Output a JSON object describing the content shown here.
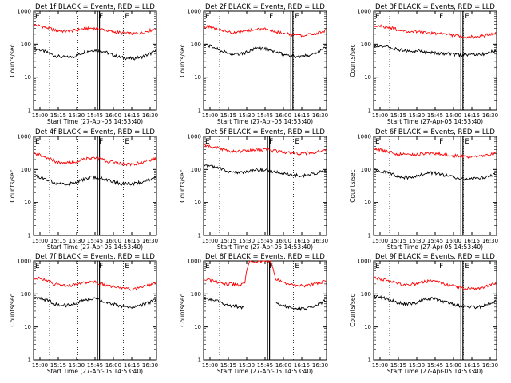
{
  "figure": {
    "xlabel": "Start Time (27-Apr-05 14:53:40)",
    "ylabel": "Counts/sec",
    "x_ticks": [
      "15:00",
      "15:15",
      "15:30",
      "15:45",
      "16:00",
      "16:15",
      "16:30"
    ],
    "y_ticks": [
      "1",
      "10",
      "100",
      "1000"
    ],
    "colors": {
      "events": "#000000",
      "lld": "#ff0000",
      "frame": "#000000"
    }
  },
  "chart_data": [
    {
      "type": "line",
      "title": "Det 1f BLACK = Events, RED = LLD",
      "ylim": [
        1,
        1000
      ],
      "yscale": "log",
      "markers": [
        "E",
        "F",
        "E"
      ],
      "series": [
        {
          "name": "Events",
          "color": "#000000",
          "values": [
            72,
            68,
            60,
            52,
            45,
            42,
            40,
            40,
            43,
            50,
            58,
            63,
            66,
            64,
            58,
            50,
            44,
            40,
            38,
            37,
            38,
            40,
            45,
            52,
            62
          ]
        },
        {
          "name": "LLD",
          "color": "#ff0000",
          "values": [
            380,
            360,
            330,
            300,
            270,
            255,
            248,
            250,
            262,
            280,
            298,
            305,
            300,
            290,
            270,
            250,
            235,
            225,
            215,
            210,
            212,
            222,
            240,
            265,
            300
          ]
        }
      ]
    },
    {
      "type": "line",
      "title": "Det 2f BLACK = Events, RED = LLD",
      "ylim": [
        1,
        1000
      ],
      "yscale": "log",
      "markers": [
        "E",
        "F",
        "E"
      ],
      "series": [
        {
          "name": "Events",
          "color": "#000000",
          "values": [
            92,
            88,
            78,
            68,
            58,
            52,
            49,
            50,
            54,
            62,
            72,
            76,
            74,
            66,
            58,
            52,
            48,
            45,
            43,
            42,
            44,
            48,
            55,
            65,
            80
          ]
        },
        {
          "name": "LLD",
          "color": "#ff0000",
          "values": [
            350,
            340,
            310,
            280,
            250,
            235,
            230,
            232,
            242,
            260,
            280,
            288,
            282,
            262,
            240,
            222,
            210,
            200,
            192,
            188,
            190,
            198,
            212,
            232,
            262
          ]
        }
      ]
    },
    {
      "type": "line",
      "title": "Det 3f BLACK = Events, RED = LLD",
      "ylim": [
        1,
        1000
      ],
      "yscale": "log",
      "markers": [
        "E",
        "F",
        "E"
      ],
      "series": [
        {
          "name": "Events",
          "color": "#000000",
          "values": [
            88,
            86,
            82,
            78,
            72,
            68,
            65,
            63,
            62,
            60,
            58,
            56,
            55,
            53,
            52,
            50,
            48,
            47,
            46,
            46,
            47,
            49,
            52,
            57,
            63
          ]
        },
        {
          "name": "LLD",
          "color": "#ff0000",
          "values": [
            370,
            360,
            340,
            315,
            292,
            272,
            258,
            248,
            242,
            236,
            230,
            222,
            214,
            205,
            196,
            188,
            180,
            174,
            170,
            168,
            170,
            176,
            186,
            200,
            220
          ]
        }
      ]
    },
    {
      "type": "line",
      "title": "Det 4f BLACK = Events, RED = LLD",
      "ylim": [
        1,
        1000
      ],
      "yscale": "log",
      "markers": [
        "E",
        "F",
        "E"
      ],
      "series": [
        {
          "name": "Events",
          "color": "#000000",
          "values": [
            65,
            60,
            52,
            45,
            40,
            37,
            36,
            37,
            40,
            45,
            52,
            57,
            59,
            56,
            50,
            45,
            41,
            38,
            37,
            37,
            38,
            41,
            45,
            50,
            56
          ]
        },
        {
          "name": "LLD",
          "color": "#ff0000",
          "values": [
            300,
            280,
            245,
            210,
            180,
            162,
            155,
            158,
            170,
            190,
            212,
            225,
            220,
            205,
            185,
            170,
            160,
            152,
            148,
            148,
            152,
            162,
            178,
            198,
            222
          ]
        }
      ]
    },
    {
      "type": "line",
      "title": "Det 5f BLACK = Events, RED = LLD",
      "ylim": [
        1,
        1000
      ],
      "yscale": "log",
      "markers": [
        "E",
        "F",
        "E"
      ],
      "series": [
        {
          "name": "Events",
          "color": "#000000",
          "values": [
            130,
            128,
            118,
            106,
            94,
            86,
            80,
            79,
            82,
            88,
            95,
            98,
            96,
            90,
            84,
            78,
            74,
            70,
            67,
            66,
            67,
            70,
            76,
            84,
            96
          ]
        },
        {
          "name": "LLD",
          "color": "#ff0000",
          "values": [
            520,
            505,
            470,
            430,
            395,
            372,
            360,
            358,
            365,
            380,
            395,
            400,
            395,
            380,
            362,
            345,
            330,
            318,
            310,
            306,
            308,
            316,
            332,
            356,
            390
          ]
        }
      ]
    },
    {
      "type": "line",
      "title": "Det 6f BLACK = Events, RED = LLD",
      "ylim": [
        1,
        1000
      ],
      "yscale": "log",
      "markers": [
        "E",
        "F",
        "E"
      ],
      "series": [
        {
          "name": "Events",
          "color": "#000000",
          "values": [
            95,
            92,
            85,
            76,
            68,
            62,
            58,
            57,
            60,
            66,
            74,
            79,
            78,
            72,
            66,
            62,
            58,
            55,
            53,
            52,
            53,
            55,
            59,
            65,
            73
          ]
        },
        {
          "name": "LLD",
          "color": "#ff0000",
          "values": [
            400,
            392,
            370,
            340,
            310,
            292,
            282,
            280,
            285,
            296,
            310,
            316,
            310,
            298,
            284,
            270,
            260,
            252,
            246,
            242,
            244,
            250,
            262,
            280,
            305
          ]
        }
      ]
    },
    {
      "type": "line",
      "title": "Det 7f BLACK = Events, RED = LLD",
      "ylim": [
        1,
        1000
      ],
      "yscale": "log",
      "markers": [
        "E",
        "F",
        "E"
      ],
      "series": [
        {
          "name": "Events",
          "color": "#000000",
          "values": [
            80,
            76,
            68,
            59,
            51,
            47,
            45,
            46,
            50,
            57,
            65,
            70,
            70,
            64,
            57,
            51,
            47,
            44,
            42,
            41,
            42,
            45,
            50,
            57,
            66
          ]
        },
        {
          "name": "LLD",
          "color": "#ff0000",
          "values": [
            300,
            290,
            262,
            230,
            200,
            182,
            175,
            176,
            186,
            205,
            225,
            235,
            230,
            210,
            188,
            170,
            158,
            150,
            145,
            143,
            146,
            155,
            170,
            192,
            222
          ]
        }
      ]
    },
    {
      "type": "line",
      "title": "Det 8f BLACK = Events, RED = LLD",
      "ylim": [
        1,
        1000
      ],
      "yscale": "log",
      "markers": [
        "E",
        "F",
        "E"
      ],
      "series": [
        {
          "name": "Events",
          "color": "#000000",
          "values": [
            72,
            70,
            64,
            56,
            49,
            45,
            42,
            40,
            40,
            null,
            null,
            null,
            null,
            null,
            60,
            50,
            42,
            38,
            36,
            35,
            36,
            39,
            44,
            52,
            64
          ]
        },
        {
          "name": "LLD",
          "color": "#ff0000",
          "values": [
            270,
            262,
            245,
            225,
            208,
            198,
            192,
            190,
            200,
            1000,
            1000,
            1000,
            1000,
            1000,
            290,
            240,
            210,
            192,
            182,
            176,
            178,
            186,
            200,
            220,
            250
          ]
        }
      ]
    },
    {
      "type": "line",
      "title": "Det 9f BLACK = Events, RED = LLD",
      "ylim": [
        1,
        1000
      ],
      "yscale": "log",
      "markers": [
        "E",
        "F",
        "E"
      ],
      "series": [
        {
          "name": "Events",
          "color": "#000000",
          "values": [
            82,
            80,
            74,
            66,
            58,
            53,
            50,
            50,
            53,
            60,
            68,
            72,
            70,
            64,
            57,
            51,
            47,
            44,
            42,
            40,
            40,
            42,
            46,
            52,
            60
          ]
        },
        {
          "name": "LLD",
          "color": "#ff0000",
          "values": [
            300,
            292,
            270,
            240,
            212,
            196,
            190,
            192,
            202,
            220,
            240,
            248,
            240,
            222,
            200,
            182,
            168,
            158,
            150,
            146,
            146,
            152,
            165,
            185,
            212
          ]
        }
      ]
    }
  ]
}
